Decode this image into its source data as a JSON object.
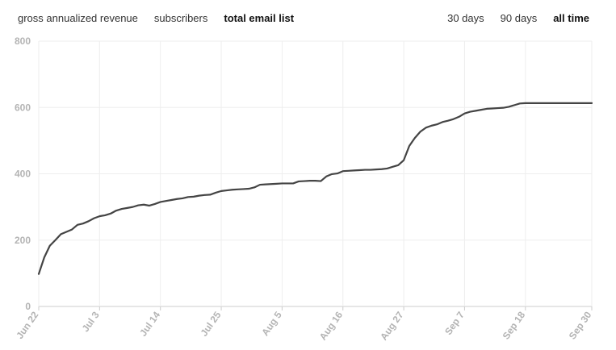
{
  "toolbar": {
    "metric_tabs": [
      {
        "label": "gross annualized revenue",
        "active": false
      },
      {
        "label": "subscribers",
        "active": false
      },
      {
        "label": "total email list",
        "active": true
      }
    ],
    "range_tabs": [
      {
        "label": "30 days",
        "active": false
      },
      {
        "label": "90 days",
        "active": false
      },
      {
        "label": "all time",
        "active": true
      }
    ]
  },
  "colors": {
    "line": "#444444",
    "grid": "#eeeeee",
    "axis": "#cccccc",
    "tick_text": "#b4b4b4"
  },
  "chart_data": {
    "type": "line",
    "title": "",
    "xlabel": "",
    "ylabel": "",
    "ylim": [
      0,
      800
    ],
    "yticks": [
      0,
      200,
      400,
      600,
      800
    ],
    "grid": true,
    "xlim": [
      "Jun 22",
      "Sep 30"
    ],
    "x_tick_labels": [
      "Jun 22",
      "Jul 3",
      "Jul 14",
      "Jul 25",
      "Aug 5",
      "Aug 16",
      "Aug 27",
      "Sep 7",
      "Sep 18",
      "Sep 30"
    ],
    "series": [
      {
        "x": [
          "Jun 22",
          "Jun 23",
          "Jun 24",
          "Jun 25",
          "Jun 26",
          "Jun 27",
          "Jun 28",
          "Jun 29",
          "Jun 30",
          "Jul 1",
          "Jul 2",
          "Jul 3",
          "Jul 4",
          "Jul 5",
          "Jul 6",
          "Jul 7",
          "Jul 8",
          "Jul 9",
          "Jul 10",
          "Jul 11",
          "Jul 12",
          "Jul 13",
          "Jul 14",
          "Jul 15",
          "Jul 16",
          "Jul 17",
          "Jul 18",
          "Jul 19",
          "Jul 20",
          "Jul 21",
          "Jul 22",
          "Jul 23",
          "Jul 24",
          "Jul 25",
          "Jul 26",
          "Jul 27",
          "Jul 28",
          "Jul 29",
          "Jul 30",
          "Jul 31",
          "Aug 1",
          "Aug 2",
          "Aug 3",
          "Aug 4",
          "Aug 5",
          "Aug 6",
          "Aug 7",
          "Aug 8",
          "Aug 9",
          "Aug 10",
          "Aug 11",
          "Aug 12",
          "Aug 13",
          "Aug 14",
          "Aug 15",
          "Aug 16",
          "Aug 17",
          "Aug 18",
          "Aug 19",
          "Aug 20",
          "Aug 21",
          "Aug 22",
          "Aug 23",
          "Aug 24",
          "Aug 25",
          "Aug 26",
          "Aug 27",
          "Aug 28",
          "Aug 29",
          "Aug 30",
          "Aug 31",
          "Sep 1",
          "Sep 2",
          "Sep 3",
          "Sep 4",
          "Sep 5",
          "Sep 6",
          "Sep 7",
          "Sep 8",
          "Sep 9",
          "Sep 10",
          "Sep 11",
          "Sep 12",
          "Sep 13",
          "Sep 14",
          "Sep 15",
          "Sep 16",
          "Sep 17",
          "Sep 18",
          "Sep 19",
          "Sep 20",
          "Sep 21",
          "Sep 22",
          "Sep 23",
          "Sep 24",
          "Sep 25",
          "Sep 26",
          "Sep 27",
          "Sep 28",
          "Sep 29",
          "Sep 30"
        ],
        "y": [
          98,
          148,
          183,
          200,
          218,
          225,
          232,
          246,
          250,
          257,
          266,
          272,
          275,
          280,
          289,
          294,
          297,
          300,
          305,
          307,
          304,
          309,
          315,
          318,
          321,
          324,
          326,
          330,
          331,
          334,
          336,
          337,
          343,
          348,
          350,
          352,
          353,
          354,
          355,
          359,
          367,
          368,
          369,
          370,
          371,
          371,
          371,
          377,
          378,
          379,
          379,
          378,
          392,
          399,
          401,
          408,
          409,
          410,
          411,
          412,
          412,
          413,
          414,
          416,
          421,
          426,
          441,
          484,
          508,
          527,
          539,
          545,
          549,
          556,
          560,
          565,
          572,
          582,
          587,
          590,
          593,
          596,
          597,
          598,
          599,
          602,
          607,
          612,
          613,
          613,
          613,
          613,
          613,
          613,
          613,
          613,
          613,
          613,
          613,
          613,
          613
        ]
      }
    ]
  }
}
